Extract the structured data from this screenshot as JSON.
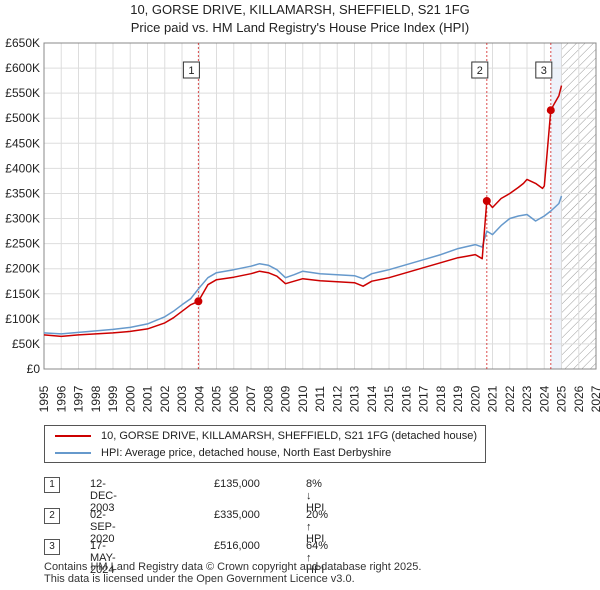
{
  "chart_data": {
    "type": "line",
    "title": "10, GORSE DRIVE, KILLAMARSH, SHEFFIELD, S21 1FG",
    "subtitle": "Price paid vs. HM Land Registry's House Price Index (HPI)",
    "xlim": [
      1995,
      2027
    ],
    "ylim": [
      0,
      650000
    ],
    "y_ticks": [
      {
        "value": 0,
        "label": "£0"
      },
      {
        "value": 50000,
        "label": "£50K"
      },
      {
        "value": 100000,
        "label": "£100K"
      },
      {
        "value": 150000,
        "label": "£150K"
      },
      {
        "value": 200000,
        "label": "£200K"
      },
      {
        "value": 250000,
        "label": "£250K"
      },
      {
        "value": 300000,
        "label": "£300K"
      },
      {
        "value": 350000,
        "label": "£350K"
      },
      {
        "value": 400000,
        "label": "£400K"
      },
      {
        "value": 450000,
        "label": "£450K"
      },
      {
        "value": 500000,
        "label": "£500K"
      },
      {
        "value": 550000,
        "label": "£550K"
      },
      {
        "value": 600000,
        "label": "£600K"
      },
      {
        "value": 650000,
        "label": "£650K"
      }
    ],
    "x_ticks": [
      "1995",
      "1996",
      "1997",
      "1998",
      "1999",
      "2000",
      "2001",
      "2002",
      "2003",
      "2004",
      "2005",
      "2006",
      "2007",
      "2008",
      "2009",
      "2010",
      "2011",
      "2012",
      "2013",
      "2014",
      "2015",
      "2016",
      "2017",
      "2018",
      "2019",
      "2020",
      "2021",
      "2022",
      "2023",
      "2024",
      "2025",
      "2026",
      "2027"
    ],
    "hatch_from": 2025.0,
    "series": [
      {
        "name": "10, GORSE DRIVE, KILLAMARSH, SHEFFIELD, S21 1FG (detached house)",
        "color": "#cc0000",
        "x": [
          1995.0,
          1996.0,
          1997.0,
          1998.0,
          1999.0,
          2000.0,
          2001.0,
          2002.0,
          2002.5,
          2003.0,
          2003.5,
          2003.95,
          2004.5,
          2005.0,
          2006.0,
          2007.0,
          2007.5,
          2008.0,
          2008.5,
          2009.0,
          2009.5,
          2010.0,
          2011.0,
          2012.0,
          2013.0,
          2013.5,
          2014.0,
          2015.0,
          2016.0,
          2017.0,
          2018.0,
          2019.0,
          2019.5,
          2020.0,
          2020.4,
          2020.67,
          2021.0,
          2021.5,
          2022.0,
          2022.5,
          2022.8,
          2023.0,
          2023.5,
          2023.9,
          2024.0,
          2024.38,
          2024.6,
          2024.85,
          2025.0
        ],
        "values": [
          68000,
          65000,
          68000,
          70000,
          72000,
          75000,
          80000,
          92000,
          102000,
          115000,
          128000,
          135000,
          168000,
          178000,
          183000,
          190000,
          195000,
          192000,
          185000,
          170000,
          175000,
          180000,
          176000,
          174000,
          172000,
          165000,
          175000,
          182000,
          192000,
          202000,
          212000,
          222000,
          225000,
          228000,
          220000,
          335000,
          322000,
          340000,
          350000,
          362000,
          370000,
          378000,
          370000,
          360000,
          365000,
          516000,
          530000,
          545000,
          565000
        ]
      },
      {
        "name": "HPI: Average price, detached house, North East Derbyshire",
        "color": "#6699cc",
        "x": [
          1995.0,
          1996.0,
          1997.0,
          1998.0,
          1999.0,
          2000.0,
          2001.0,
          2002.0,
          2002.5,
          2003.0,
          2003.5,
          2004.0,
          2004.5,
          2005.0,
          2006.0,
          2007.0,
          2007.5,
          2008.0,
          2008.5,
          2009.0,
          2009.5,
          2010.0,
          2011.0,
          2012.0,
          2013.0,
          2013.5,
          2014.0,
          2015.0,
          2016.0,
          2017.0,
          2018.0,
          2019.0,
          2019.5,
          2020.0,
          2020.4,
          2020.67,
          2021.0,
          2021.5,
          2022.0,
          2022.5,
          2023.0,
          2023.5,
          2024.0,
          2024.38,
          2024.6,
          2024.85,
          2025.0
        ],
        "values": [
          72000,
          70000,
          73000,
          76000,
          79000,
          83000,
          90000,
          104000,
          115000,
          128000,
          140000,
          162000,
          182000,
          192000,
          198000,
          205000,
          210000,
          207000,
          198000,
          182000,
          188000,
          195000,
          190000,
          188000,
          186000,
          180000,
          190000,
          198000,
          208000,
          218000,
          228000,
          240000,
          244000,
          248000,
          243000,
          275000,
          268000,
          286000,
          300000,
          305000,
          308000,
          295000,
          305000,
          315000,
          322000,
          330000,
          345000
        ]
      }
    ],
    "transactions": [
      {
        "num": "1",
        "date": "12-DEC-2003",
        "x": 2003.95,
        "price": "£135,000",
        "price_value": 135000,
        "hpi": "8% ↓ HPI"
      },
      {
        "num": "2",
        "date": "02-SEP-2020",
        "x": 2020.67,
        "price": "£335,000",
        "price_value": 335000,
        "hpi": "20% ↑ HPI"
      },
      {
        "num": "3",
        "date": "17-MAY-2024",
        "x": 2024.38,
        "price": "£516,000",
        "price_value": 516000,
        "hpi": "64% ↑ HPI"
      }
    ]
  },
  "legend": {
    "property": "10, GORSE DRIVE, KILLAMARSH, SHEFFIELD, S21 1FG (detached house)",
    "hpi": "HPI: Average price, detached house, North East Derbyshire"
  },
  "footer": {
    "line1": "Contains HM Land Registry data © Crown copyright and database right 2025.",
    "line2": "This data is licensed under the Open Government Licence v3.0."
  },
  "colors": {
    "property": "#cc0000",
    "hpi": "#6699cc",
    "marker_line": "#cc0000",
    "shade": "#eef2fa"
  }
}
